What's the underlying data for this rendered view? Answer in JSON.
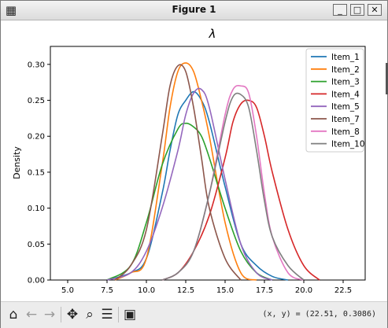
{
  "window": {
    "title": "Figure 1",
    "app_icon": "figure-icon",
    "controls": {
      "minimize": "_",
      "maximize": "□",
      "close": "✕"
    }
  },
  "toolbar": {
    "buttons": [
      {
        "name": "home-icon",
        "glyph": "⌂"
      },
      {
        "name": "back-icon",
        "glyph": "←"
      },
      {
        "name": "forward-icon",
        "glyph": "→"
      },
      {
        "name": "pan-icon",
        "glyph": "✥"
      },
      {
        "name": "zoom-icon",
        "glyph": "🔍"
      },
      {
        "name": "configure-subplots-icon",
        "glyph": "☰"
      },
      {
        "name": "save-icon",
        "glyph": "💾"
      }
    ],
    "coordinate_readout": "(x, y) = (22.51, 0.3086)"
  },
  "chart_data": {
    "type": "line",
    "title": "λ",
    "xlabel": "",
    "ylabel": "Density",
    "xlim": [
      3.9,
      23.9
    ],
    "ylim": [
      0.0,
      0.325
    ],
    "xticks": [
      "5.0",
      "7.5",
      "10.0",
      "12.5",
      "15.0",
      "17.5",
      "20.0",
      "22.5"
    ],
    "xtick_values": [
      5.0,
      7.5,
      10.0,
      12.5,
      15.0,
      17.5,
      20.0,
      22.5
    ],
    "yticks": [
      "0.00",
      "0.05",
      "0.10",
      "0.15",
      "0.20",
      "0.25",
      "0.30"
    ],
    "ytick_values": [
      0.0,
      0.05,
      0.1,
      0.15,
      0.2,
      0.25,
      0.3
    ],
    "grid": false,
    "legend_position": "top-right",
    "series": [
      {
        "name": "Item_1",
        "color": "#1f77b4",
        "x": [
          7.5,
          9.0,
          10.0,
          11.0,
          11.5,
          12.0,
          12.5,
          13.0,
          13.5,
          14.0,
          15.0,
          16.0,
          17.0,
          18.0,
          19.0
        ],
        "y": [
          0.0,
          0.01,
          0.03,
          0.12,
          0.18,
          0.23,
          0.25,
          0.262,
          0.25,
          0.22,
          0.13,
          0.05,
          0.02,
          0.005,
          0.0
        ]
      },
      {
        "name": "Item_2",
        "color": "#ff7f0e",
        "x": [
          8.0,
          9.0,
          10.0,
          11.0,
          11.5,
          12.0,
          12.5,
          13.0,
          13.5,
          14.0,
          15.0,
          16.0,
          17.0
        ],
        "y": [
          0.0,
          0.01,
          0.03,
          0.16,
          0.24,
          0.29,
          0.302,
          0.29,
          0.25,
          0.2,
          0.08,
          0.01,
          0.0
        ]
      },
      {
        "name": "Item_3",
        "color": "#2ca02c",
        "x": [
          7.5,
          9.0,
          10.0,
          11.0,
          12.0,
          12.5,
          13.0,
          13.5,
          14.0,
          15.0,
          16.0,
          17.0,
          18.0
        ],
        "y": [
          0.0,
          0.02,
          0.08,
          0.16,
          0.21,
          0.218,
          0.213,
          0.2,
          0.17,
          0.1,
          0.04,
          0.01,
          0.0
        ]
      },
      {
        "name": "Item_4",
        "color": "#d62728",
        "x": [
          11.0,
          12.0,
          13.0,
          14.0,
          15.0,
          15.5,
          16.0,
          16.5,
          17.0,
          17.5,
          18.0,
          19.0,
          20.0,
          21.0
        ],
        "y": [
          0.0,
          0.01,
          0.04,
          0.09,
          0.17,
          0.22,
          0.245,
          0.25,
          0.24,
          0.2,
          0.15,
          0.07,
          0.02,
          0.0
        ]
      },
      {
        "name": "Item_5",
        "color": "#9467bd",
        "x": [
          7.5,
          9.0,
          10.0,
          11.0,
          12.0,
          12.5,
          13.0,
          13.5,
          14.0,
          15.0,
          16.0,
          17.0,
          18.0
        ],
        "y": [
          0.0,
          0.01,
          0.04,
          0.1,
          0.18,
          0.23,
          0.26,
          0.265,
          0.24,
          0.14,
          0.05,
          0.01,
          0.0
        ]
      },
      {
        "name": "Item_7",
        "color": "#8c564b",
        "x": [
          8.0,
          9.0,
          10.0,
          11.0,
          11.5,
          12.0,
          12.5,
          13.0,
          13.5,
          14.0,
          15.0,
          16.0
        ],
        "y": [
          0.0,
          0.02,
          0.07,
          0.2,
          0.27,
          0.298,
          0.29,
          0.24,
          0.17,
          0.1,
          0.03,
          0.0
        ]
      },
      {
        "name": "Item_8",
        "color": "#e377c2",
        "x": [
          11.0,
          12.0,
          13.0,
          14.0,
          15.0,
          15.5,
          16.0,
          16.5,
          17.0,
          17.5,
          18.0,
          19.0,
          20.0
        ],
        "y": [
          0.0,
          0.01,
          0.04,
          0.12,
          0.23,
          0.265,
          0.27,
          0.26,
          0.2,
          0.12,
          0.06,
          0.01,
          0.0
        ]
      },
      {
        "name": "Item_10",
        "color": "#7f7f7f",
        "x": [
          11.0,
          12.0,
          13.0,
          14.0,
          15.0,
          15.5,
          16.0,
          16.5,
          17.0,
          17.5,
          18.0,
          19.0,
          20.0
        ],
        "y": [
          0.0,
          0.01,
          0.04,
          0.12,
          0.22,
          0.255,
          0.258,
          0.24,
          0.18,
          0.11,
          0.06,
          0.02,
          0.0
        ]
      }
    ]
  }
}
